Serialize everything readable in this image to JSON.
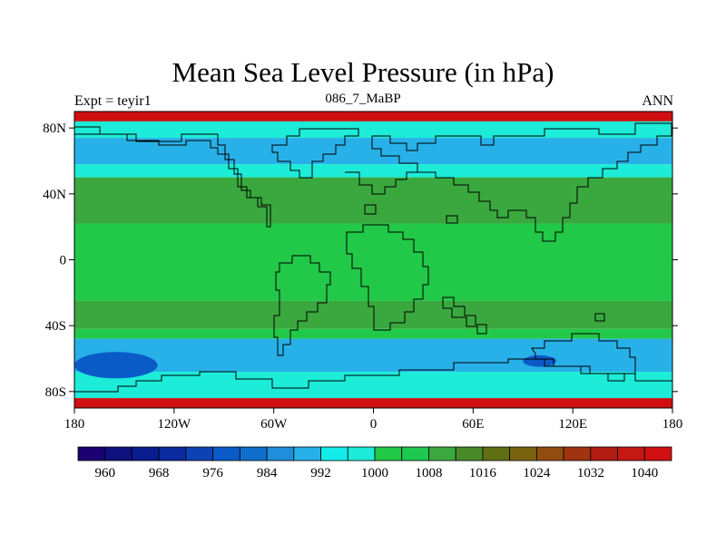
{
  "chart_data": {
    "type": "heatmap",
    "title": "Mean Sea Level Pressure (in hPa)",
    "left_label": "Expt = teyir1",
    "center_label": "086_7_MaBP",
    "right_label": "ANN",
    "x_range": [
      -180,
      180
    ],
    "y_range": [
      -90,
      90
    ],
    "x_ticks": [
      {
        "value": -180,
        "label": "180"
      },
      {
        "value": -120,
        "label": "120W"
      },
      {
        "value": -60,
        "label": "60W"
      },
      {
        "value": 0,
        "label": "0"
      },
      {
        "value": 60,
        "label": "60E"
      },
      {
        "value": 120,
        "label": "120E"
      },
      {
        "value": 180,
        "label": "180"
      }
    ],
    "y_ticks": [
      {
        "value": 80,
        "label": "80N"
      },
      {
        "value": 40,
        "label": "40N"
      },
      {
        "value": 0,
        "label": "0"
      },
      {
        "value": -40,
        "label": "40S"
      },
      {
        "value": -80,
        "label": "80S"
      }
    ],
    "zonal_bands": [
      {
        "lat": [
          84,
          90
        ],
        "value": 1040
      },
      {
        "lat": [
          74,
          84
        ],
        "value": 996
      },
      {
        "lat": [
          58,
          74
        ],
        "value": 990
      },
      {
        "lat": [
          50,
          58
        ],
        "value": 996
      },
      {
        "lat": [
          22,
          50
        ],
        "value": 1008
      },
      {
        "lat": [
          -25,
          22
        ],
        "value": 1000
      },
      {
        "lat": [
          -42,
          -25
        ],
        "value": 1008
      },
      {
        "lat": [
          -48,
          -42
        ],
        "value": 1000
      },
      {
        "lat": [
          -68,
          -48
        ],
        "value": 990
      },
      {
        "lat": [
          -84,
          -68
        ],
        "value": 996
      },
      {
        "lat": [
          -90,
          -84
        ],
        "value": 1040
      }
    ],
    "regions": [
      {
        "name": "pacific-low",
        "lon": [
          -180,
          -130
        ],
        "lat": [
          -72,
          -56
        ],
        "value": 976
      },
      {
        "name": "indian-low",
        "lon": [
          90,
          110
        ],
        "lat": [
          -65,
          -58
        ],
        "value": 976
      }
    ],
    "colorbar": {
      "levels": [
        960,
        964,
        968,
        972,
        976,
        980,
        984,
        988,
        992,
        996,
        1000,
        1004,
        1008,
        1012,
        1016,
        1020,
        1024,
        1028,
        1032,
        1036,
        1040
      ],
      "colors": [
        "#1a0070",
        "#0f117e",
        "#0a1c90",
        "#0b2aa0",
        "#0e42b4",
        "#0a5ac8",
        "#0e6ecc",
        "#1e8edc",
        "#28b0e8",
        "#14ecec",
        "#1cecd8",
        "#22c848",
        "#1ec850",
        "#3aa83e",
        "#4a8a2a",
        "#606e14",
        "#7a6410",
        "#924c10",
        "#a03410",
        "#b01c12",
        "#c41814",
        "#d01010"
      ],
      "labels": [
        "960",
        "968",
        "976",
        "984",
        "992",
        "1000",
        "1008",
        "1016",
        "1024",
        "1032",
        "1040"
      ]
    }
  }
}
